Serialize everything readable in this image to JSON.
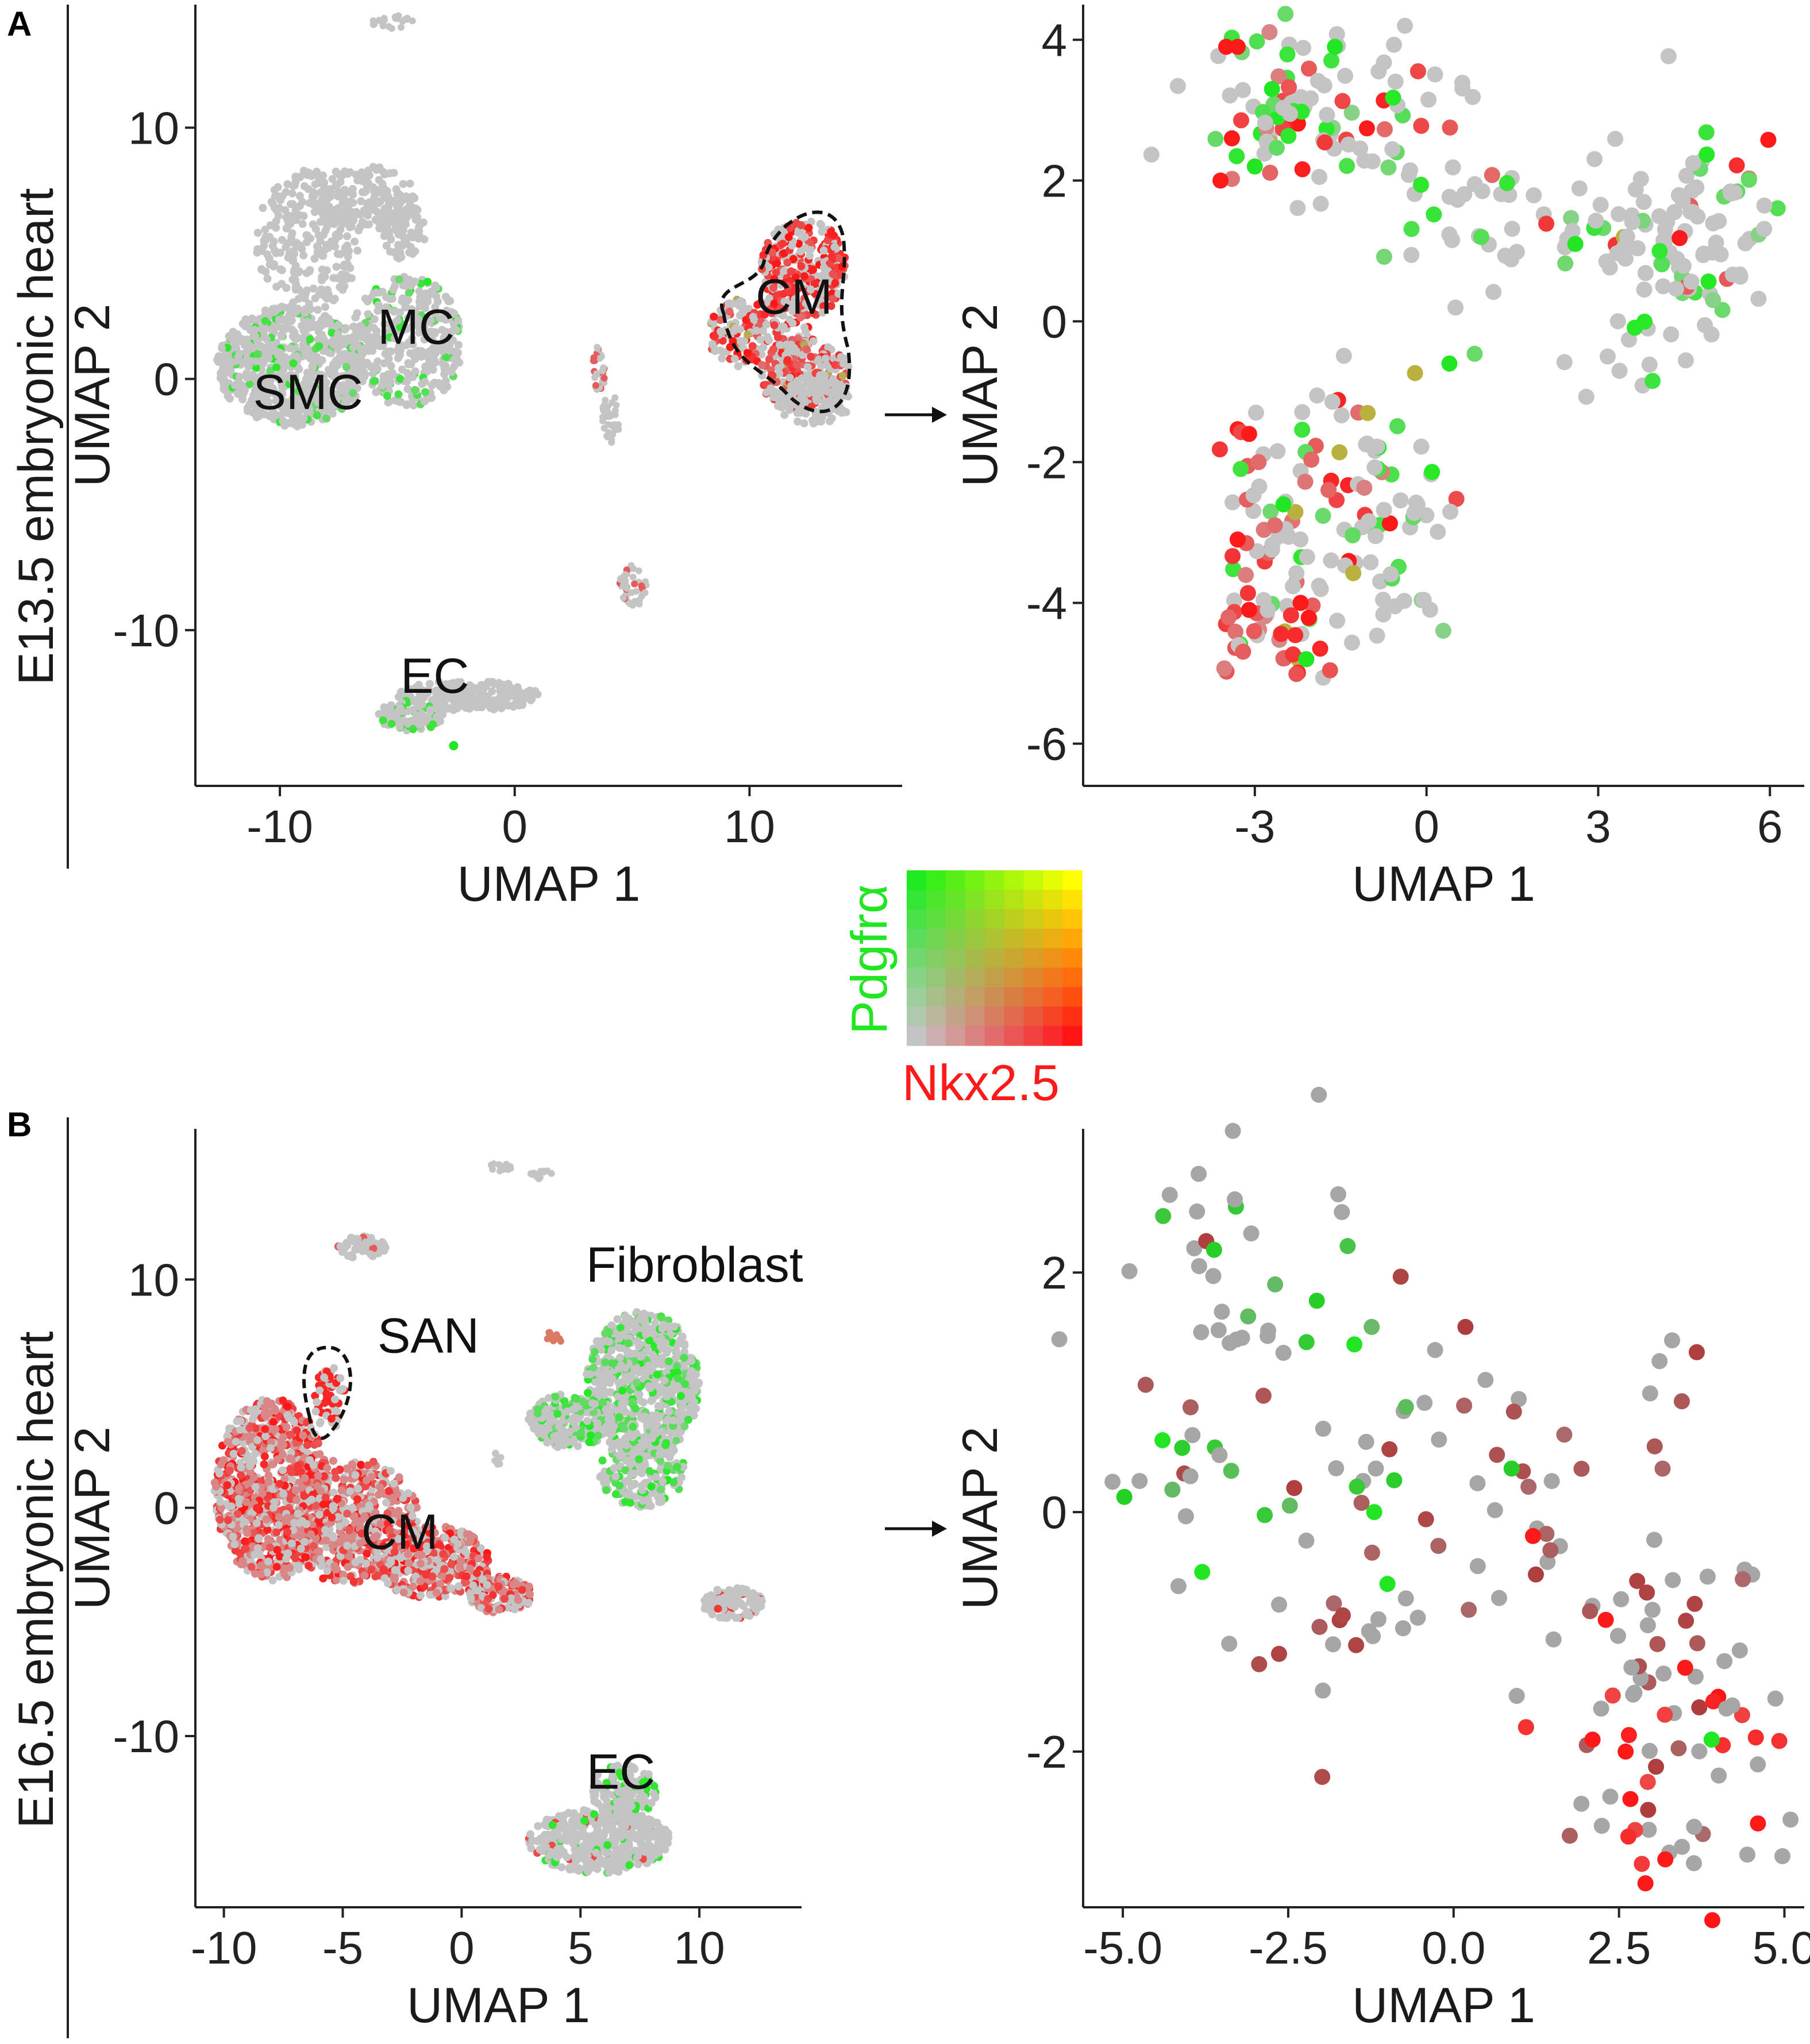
{
  "panels": [
    {
      "id": "A",
      "label": "A",
      "row_title": "E13.5 embryonic heart"
    },
    {
      "id": "B",
      "label": "B",
      "row_title": "E16.5 embryonic heart"
    }
  ],
  "colors": {
    "grey": "#c4c4c4",
    "pdgfra": "#22e622",
    "nkx25": "#ff1a1a",
    "axis": "#222222",
    "black": "#111111"
  },
  "legend": {
    "x_label": "Nkx2.5",
    "y_label": "Pdgfrα",
    "x_color": "#ff1a1a",
    "y_color": "#22e622",
    "grid_size": 9
  },
  "chart_data": [
    {
      "id": "A-left",
      "type": "scatter",
      "title": "",
      "xlabel": "UMAP 1",
      "ylabel": "UMAP 2",
      "xlim": [
        -13.6,
        16.5
      ],
      "ylim": [
        -16.2,
        14.9
      ],
      "xticks": [
        -10,
        0,
        10
      ],
      "xtick_labels": [
        "-10",
        "0",
        "10"
      ],
      "yticks": [
        10,
        0,
        -10
      ],
      "ytick_labels": [
        "10",
        "0",
        "-10"
      ],
      "clusters": [
        {
          "label": "CM",
          "x": 11.9,
          "y": 2.6,
          "highlighted": true
        },
        {
          "label": "MC",
          "x": -4.2,
          "y": 1.4
        },
        {
          "label": "SMC",
          "x": -8.8,
          "y": -1.2
        },
        {
          "label": "EC",
          "x": -3.4,
          "y": -12.5
        }
      ]
    },
    {
      "id": "A-right",
      "type": "scatter",
      "title": "",
      "xlabel": "UMAP 1",
      "ylabel": "UMAP 2",
      "xlim": [
        -6.0,
        6.6
      ],
      "ylim": [
        -6.6,
        4.5
      ],
      "xticks": [
        -3,
        0,
        3,
        6
      ],
      "xtick_labels": [
        "-3",
        "0",
        "3",
        "6"
      ],
      "yticks": [
        4,
        2,
        0,
        -2,
        -4,
        -6
      ],
      "ytick_labels": [
        "4",
        "2",
        "0",
        "-2",
        "-4",
        "-6"
      ],
      "subset_of": "CM"
    },
    {
      "id": "B-left",
      "type": "scatter",
      "title": "",
      "xlabel": "UMAP 1",
      "ylabel": "UMAP 2",
      "xlim": [
        -11.2,
        14.3
      ],
      "ylim": [
        -17.5,
        16.6
      ],
      "xticks": [
        -10,
        -5,
        0,
        5,
        10
      ],
      "xtick_labels": [
        "-10",
        "-5",
        "0",
        "5",
        "10"
      ],
      "yticks": [
        10,
        0,
        -10
      ],
      "ytick_labels": [
        "10",
        "0",
        "-10"
      ],
      "clusters": [
        {
          "label": "Fibroblast",
          "x": 9.8,
          "y": 9.9
        },
        {
          "label": "SAN",
          "x": -1.4,
          "y": 6.8,
          "highlighted": true
        },
        {
          "label": "CM",
          "x": -2.6,
          "y": -1.8
        },
        {
          "label": "EC",
          "x": 6.7,
          "y": -12.3
        }
      ]
    },
    {
      "id": "B-right",
      "type": "scatter",
      "title": "",
      "xlabel": "UMAP 1",
      "ylabel": "UMAP 2",
      "xlim": [
        -5.6,
        5.3
      ],
      "ylim": [
        -3.3,
        3.2
      ],
      "xticks": [
        -5.0,
        -2.5,
        0.0,
        2.5,
        5.0
      ],
      "xtick_labels": [
        "-5.0",
        "-2.5",
        "0.0",
        "2.5",
        "5.0"
      ],
      "yticks": [
        2,
        0,
        -2
      ],
      "ytick_labels": [
        "2",
        "0",
        "-2"
      ],
      "subset_of": "SAN"
    }
  ]
}
